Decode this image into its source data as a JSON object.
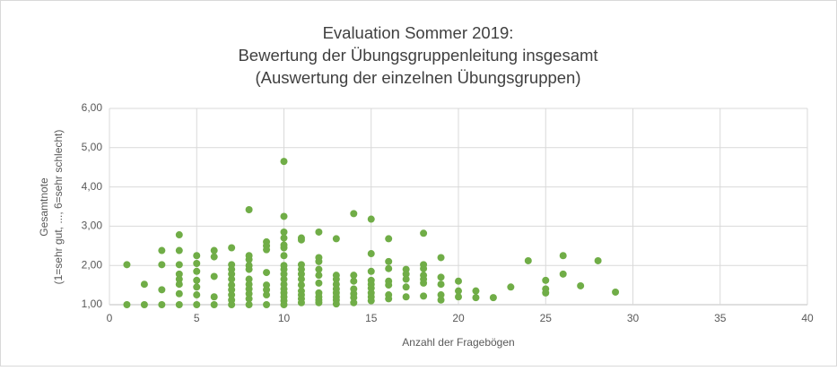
{
  "chart_data": {
    "type": "scatter",
    "title": [
      "Evaluation Sommer 2019:",
      "Bewertung der Übungsgruppenleitung insgesamt",
      "(Auswertung der einzelnen Übungsgruppen)"
    ],
    "x_label": "Anzahl der Fragebögen",
    "y_label": [
      "Gesamtnote",
      "(1=sehr gut, ..., 6=sehr schlecht)"
    ],
    "color": "#70ad47",
    "x": [
      1,
      1,
      2,
      2,
      3,
      3,
      3,
      3,
      4,
      4,
      4,
      4,
      4,
      4,
      4,
      4,
      5,
      5,
      5,
      5,
      5,
      5,
      5,
      6,
      6,
      6,
      6,
      6,
      7,
      7,
      7,
      7,
      7,
      7,
      7,
      7,
      7,
      7,
      8,
      8,
      8,
      8,
      8,
      8,
      8,
      8,
      8,
      8,
      8,
      9,
      9,
      9,
      9,
      9,
      9,
      9,
      9,
      10,
      10,
      10,
      10,
      10,
      10,
      10,
      10,
      10,
      10,
      10,
      10,
      10,
      10,
      10,
      10,
      10,
      11,
      11,
      11,
      11,
      11,
      11,
      11,
      11,
      11,
      11,
      11,
      12,
      12,
      12,
      12,
      12,
      12,
      12,
      12,
      12,
      12,
      13,
      13,
      13,
      13,
      13,
      13,
      13,
      13,
      13,
      14,
      14,
      14,
      14,
      14,
      14,
      14,
      15,
      15,
      15,
      15,
      15,
      15,
      15,
      15,
      15,
      16,
      16,
      16,
      16,
      16,
      16,
      16,
      17,
      17,
      17,
      17,
      17,
      18,
      18,
      18,
      18,
      18,
      18,
      18,
      19,
      19,
      19,
      19,
      19,
      20,
      20,
      20,
      21,
      21,
      22,
      23,
      24,
      25,
      25,
      25,
      26,
      26,
      27,
      28,
      29
    ],
    "y": [
      2.02,
      1.0,
      1.52,
      1.0,
      2.38,
      2.02,
      1.38,
      1.0,
      2.78,
      2.38,
      2.02,
      1.78,
      1.65,
      1.52,
      1.28,
      1.0,
      2.25,
      2.05,
      1.85,
      1.62,
      1.45,
      1.25,
      1.0,
      2.38,
      2.22,
      1.72,
      1.2,
      1.0,
      2.45,
      2.02,
      1.9,
      1.78,
      1.65,
      1.5,
      1.38,
      1.25,
      1.12,
      1.0,
      3.42,
      2.25,
      2.15,
      2.0,
      1.9,
      1.65,
      1.52,
      1.4,
      1.28,
      1.15,
      1.0,
      2.6,
      2.5,
      2.4,
      1.82,
      1.5,
      1.38,
      1.25,
      1.0,
      4.65,
      3.25,
      2.85,
      2.7,
      2.52,
      2.45,
      2.25,
      2.0,
      1.9,
      1.78,
      1.65,
      1.52,
      1.4,
      1.3,
      1.2,
      1.1,
      1.0,
      2.7,
      2.65,
      2.02,
      1.9,
      1.78,
      1.65,
      1.5,
      1.35,
      1.25,
      1.15,
      1.05,
      2.85,
      2.2,
      2.1,
      1.9,
      1.75,
      1.55,
      1.3,
      1.2,
      1.12,
      1.05,
      2.68,
      1.75,
      1.65,
      1.52,
      1.4,
      1.3,
      1.2,
      1.12,
      1.02,
      3.32,
      1.75,
      1.6,
      1.4,
      1.28,
      1.18,
      1.05,
      3.18,
      2.3,
      1.85,
      1.62,
      1.52,
      1.42,
      1.3,
      1.2,
      1.1,
      2.68,
      2.1,
      1.92,
      1.6,
      1.5,
      1.25,
      1.15,
      1.9,
      1.78,
      1.65,
      1.45,
      1.2,
      2.82,
      2.02,
      1.92,
      1.75,
      1.65,
      1.55,
      1.22,
      2.2,
      1.7,
      1.52,
      1.25,
      1.12,
      1.6,
      1.35,
      1.2,
      1.35,
      1.18,
      1.18,
      1.45,
      2.12,
      1.62,
      1.4,
      1.3,
      2.25,
      1.78,
      1.48,
      2.12,
      1.32
    ],
    "xlim": [
      0,
      40
    ],
    "xticks": [
      0,
      5,
      10,
      15,
      20,
      25,
      30,
      35,
      40
    ],
    "ylim": [
      1,
      6
    ],
    "yticks": [
      {
        "value": 1,
        "label": "1,00"
      },
      {
        "value": 2,
        "label": "2,00"
      },
      {
        "value": 3,
        "label": "3,00"
      },
      {
        "value": 4,
        "label": "4,00"
      },
      {
        "value": 5,
        "label": "5,00"
      },
      {
        "value": 6,
        "label": "6,00"
      }
    ],
    "grid": true
  }
}
